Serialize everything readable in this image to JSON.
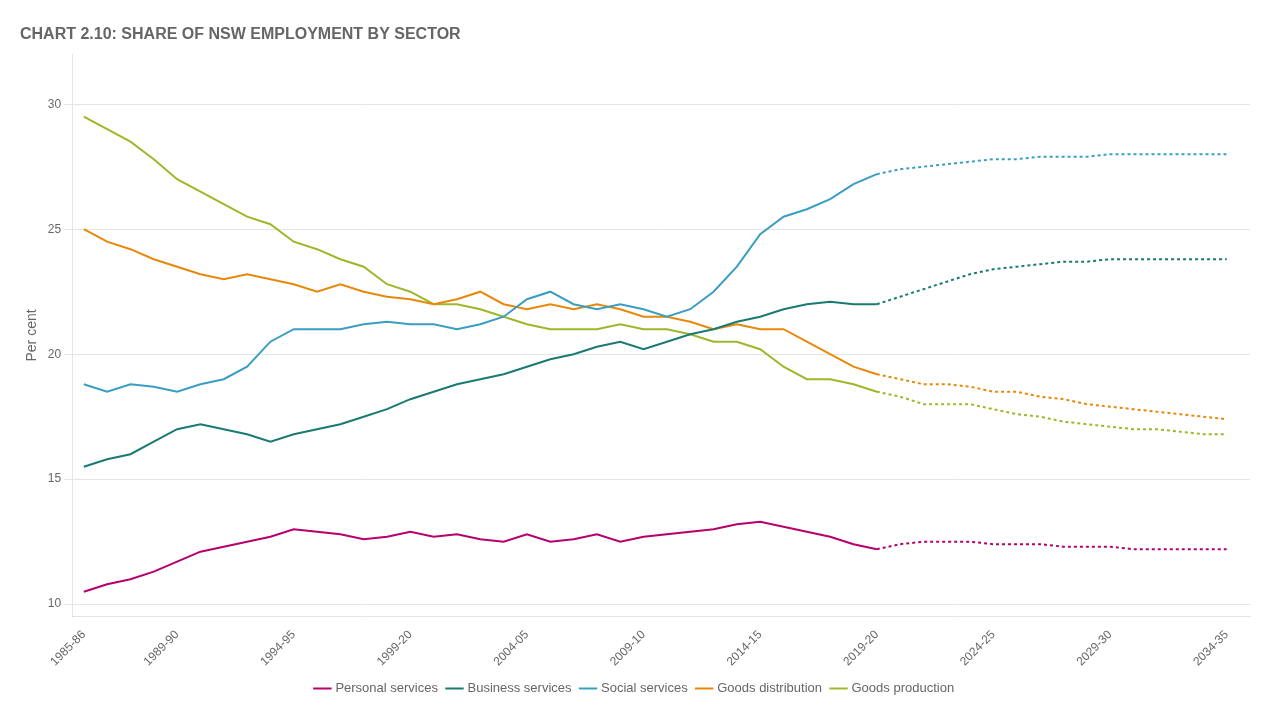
{
  "chart_data": {
    "type": "line",
    "title": "CHART 2.10: SHARE OF NSW EMPLOYMENT BY SECTOR",
    "y_label": "Per cent",
    "xlim": [
      1985.0,
      2035.5
    ],
    "xticks": [
      {
        "value": 1985.5,
        "label": "1985-86"
      },
      {
        "value": 1989.5,
        "label": "1989-90"
      },
      {
        "value": 1994.5,
        "label": "1994-95"
      },
      {
        "value": 1999.5,
        "label": "1999-20"
      },
      {
        "value": 2004.5,
        "label": "2004-05"
      },
      {
        "value": 2009.5,
        "label": "2009-10"
      },
      {
        "value": 2014.5,
        "label": "2014-15"
      },
      {
        "value": 2019.5,
        "label": "2019-20"
      },
      {
        "value": 2024.5,
        "label": "2024-25"
      },
      {
        "value": 2029.5,
        "label": "2029-30"
      },
      {
        "value": 2034.5,
        "label": "2034-35"
      }
    ],
    "ylim": [
      9.5,
      32
    ],
    "yticks": [
      10,
      15,
      20,
      25,
      30
    ],
    "grid": "y",
    "legend": "bottom",
    "series": [
      {
        "name": "Personal services",
        "color": "#b5006e",
        "line_style": "solid",
        "x": [
          1985.5,
          1986.5,
          1987.5,
          1988.5,
          1989.5,
          1990.5,
          1991.5,
          1992.5,
          1993.5,
          1994.5,
          1995.5,
          1996.5,
          1997.5,
          1998.5,
          1999.5,
          2000.5,
          2001.5,
          2002.5,
          2003.5,
          2004.5,
          2005.5,
          2006.5,
          2007.5,
          2008.5,
          2009.5,
          2010.5,
          2011.5,
          2012.5,
          2013.5,
          2014.5,
          2015.5,
          2016.5,
          2017.5,
          2018.5,
          2019.5
        ],
        "values": [
          10.5,
          10.8,
          11.0,
          11.3,
          11.7,
          12.1,
          12.3,
          12.5,
          12.7,
          13.0,
          12.9,
          12.8,
          12.6,
          12.7,
          12.9,
          12.7,
          12.8,
          12.6,
          12.5,
          12.8,
          12.5,
          12.6,
          12.8,
          12.5,
          12.7,
          12.8,
          12.9,
          13.0,
          13.2,
          13.3,
          13.1,
          12.9,
          12.7,
          12.4,
          12.2
        ]
      },
      {
        "name": "Business services",
        "color": "#1a7a72",
        "line_style": "solid",
        "x": [
          1985.5,
          1986.5,
          1987.5,
          1988.5,
          1989.5,
          1990.5,
          1991.5,
          1992.5,
          1993.5,
          1994.5,
          1995.5,
          1996.5,
          1997.5,
          1998.5,
          1999.5,
          2000.5,
          2001.5,
          2002.5,
          2003.5,
          2004.5,
          2005.5,
          2006.5,
          2007.5,
          2008.5,
          2009.5,
          2010.5,
          2011.5,
          2012.5,
          2013.5,
          2014.5,
          2015.5,
          2016.5,
          2017.5,
          2018.5,
          2019.5
        ],
        "values": [
          15.5,
          15.8,
          16.0,
          16.5,
          17.0,
          17.2,
          17.0,
          16.8,
          16.5,
          16.8,
          17.0,
          17.2,
          17.5,
          17.8,
          18.2,
          18.5,
          18.8,
          19.0,
          19.2,
          19.5,
          19.8,
          20.0,
          20.3,
          20.5,
          20.2,
          20.5,
          20.8,
          21.0,
          21.3,
          21.5,
          21.8,
          22.0,
          22.1,
          22.0,
          22.0
        ]
      },
      {
        "name": "Social services",
        "color": "#3a9ec2",
        "line_style": "solid",
        "x": [
          1985.5,
          1986.5,
          1987.5,
          1988.5,
          1989.5,
          1990.5,
          1991.5,
          1992.5,
          1993.5,
          1994.5,
          1995.5,
          1996.5,
          1997.5,
          1998.5,
          1999.5,
          2000.5,
          2001.5,
          2002.5,
          2003.5,
          2004.5,
          2005.5,
          2006.5,
          2007.5,
          2008.5,
          2009.5,
          2010.5,
          2011.5,
          2012.5,
          2013.5,
          2014.5,
          2015.5,
          2016.5,
          2017.5,
          2018.5,
          2019.5
        ],
        "values": [
          18.8,
          18.5,
          18.8,
          18.7,
          18.5,
          18.8,
          19.0,
          19.5,
          20.5,
          21.0,
          21.0,
          21.0,
          21.2,
          21.3,
          21.2,
          21.2,
          21.0,
          21.2,
          21.5,
          22.2,
          22.5,
          22.0,
          21.8,
          22.0,
          21.8,
          21.5,
          21.8,
          22.5,
          23.5,
          24.8,
          25.5,
          25.8,
          26.2,
          26.8,
          27.2
        ]
      },
      {
        "name": "Goods distribution",
        "color": "#e8880a",
        "line_style": "solid",
        "x": [
          1985.5,
          1986.5,
          1987.5,
          1988.5,
          1989.5,
          1990.5,
          1991.5,
          1992.5,
          1993.5,
          1994.5,
          1995.5,
          1996.5,
          1997.5,
          1998.5,
          1999.5,
          2000.5,
          2001.5,
          2002.5,
          2003.5,
          2004.5,
          2005.5,
          2006.5,
          2007.5,
          2008.5,
          2009.5,
          2010.5,
          2011.5,
          2012.5,
          2013.5,
          2014.5,
          2015.5,
          2016.5,
          2017.5,
          2018.5,
          2019.5
        ],
        "values": [
          25.0,
          24.5,
          24.2,
          23.8,
          23.5,
          23.2,
          23.0,
          23.2,
          23.0,
          22.8,
          22.5,
          22.8,
          22.5,
          22.3,
          22.2,
          22.0,
          22.2,
          22.5,
          22.0,
          21.8,
          22.0,
          21.8,
          22.0,
          21.8,
          21.5,
          21.5,
          21.3,
          21.0,
          21.2,
          21.0,
          21.0,
          20.5,
          20.0,
          19.5,
          19.2
        ]
      },
      {
        "name": "Goods production",
        "color": "#9cb82a",
        "line_style": "solid",
        "x": [
          1985.5,
          1986.5,
          1987.5,
          1988.5,
          1989.5,
          1990.5,
          1991.5,
          1992.5,
          1993.5,
          1994.5,
          1995.5,
          1996.5,
          1997.5,
          1998.5,
          1999.5,
          2000.5,
          2001.5,
          2002.5,
          2003.5,
          2004.5,
          2005.5,
          2006.5,
          2007.5,
          2008.5,
          2009.5,
          2010.5,
          2011.5,
          2012.5,
          2013.5,
          2014.5,
          2015.5,
          2016.5,
          2017.5,
          2018.5,
          2019.5
        ],
        "values": [
          29.5,
          29.0,
          28.5,
          27.8,
          27.0,
          26.5,
          26.0,
          25.5,
          25.2,
          24.5,
          24.2,
          23.8,
          23.5,
          22.8,
          22.5,
          22.0,
          22.0,
          21.8,
          21.5,
          21.2,
          21.0,
          21.0,
          21.0,
          21.2,
          21.0,
          21.0,
          20.8,
          20.5,
          20.5,
          20.2,
          19.5,
          19.0,
          19.0,
          18.8,
          18.5
        ]
      },
      {
        "color": "#b5006e",
        "line_style": "dotted",
        "x": [
          2019.5,
          2020.5,
          2021.5,
          2022.5,
          2023.5,
          2024.5,
          2025.5,
          2026.5,
          2027.5,
          2028.5,
          2029.5,
          2030.5,
          2031.5,
          2032.5,
          2033.5,
          2034.5
        ],
        "values": [
          12.2,
          12.4,
          12.5,
          12.5,
          12.5,
          12.4,
          12.4,
          12.4,
          12.3,
          12.3,
          12.3,
          12.2,
          12.2,
          12.2,
          12.2,
          12.2
        ]
      },
      {
        "color": "#1a7a72",
        "line_style": "dotted",
        "x": [
          2019.5,
          2020.5,
          2021.5,
          2022.5,
          2023.5,
          2024.5,
          2025.5,
          2026.5,
          2027.5,
          2028.5,
          2029.5,
          2030.5,
          2031.5,
          2032.5,
          2033.5,
          2034.5
        ],
        "values": [
          22.0,
          22.3,
          22.6,
          22.9,
          23.2,
          23.4,
          23.5,
          23.6,
          23.7,
          23.7,
          23.8,
          23.8,
          23.8,
          23.8,
          23.8,
          23.8
        ]
      },
      {
        "color": "#3a9ec2",
        "line_style": "dotted",
        "x": [
          2019.5,
          2020.5,
          2021.5,
          2022.5,
          2023.5,
          2024.5,
          2025.5,
          2026.5,
          2027.5,
          2028.5,
          2029.5,
          2030.5,
          2031.5,
          2032.5,
          2033.5,
          2034.5
        ],
        "values": [
          27.2,
          27.4,
          27.5,
          27.6,
          27.7,
          27.8,
          27.8,
          27.9,
          27.9,
          27.9,
          28.0,
          28.0,
          28.0,
          28.0,
          28.0,
          28.0
        ]
      },
      {
        "color": "#e8880a",
        "line_style": "dotted",
        "x": [
          2019.5,
          2020.5,
          2021.5,
          2022.5,
          2023.5,
          2024.5,
          2025.5,
          2026.5,
          2027.5,
          2028.5,
          2029.5,
          2030.5,
          2031.5,
          2032.5,
          2033.5,
          2034.5
        ],
        "values": [
          19.2,
          19.0,
          18.8,
          18.8,
          18.7,
          18.5,
          18.5,
          18.3,
          18.2,
          18.0,
          17.9,
          17.8,
          17.7,
          17.6,
          17.5,
          17.4
        ]
      },
      {
        "color": "#9cb82a",
        "line_style": "dotted",
        "x": [
          2019.5,
          2020.5,
          2021.5,
          2022.5,
          2023.5,
          2024.5,
          2025.5,
          2026.5,
          2027.5,
          2028.5,
          2029.5,
          2030.5,
          2031.5,
          2032.5,
          2033.5,
          2034.5
        ],
        "values": [
          18.5,
          18.3,
          18.0,
          18.0,
          18.0,
          17.8,
          17.6,
          17.5,
          17.3,
          17.2,
          17.1,
          17.0,
          17.0,
          16.9,
          16.8,
          16.8
        ]
      }
    ]
  }
}
